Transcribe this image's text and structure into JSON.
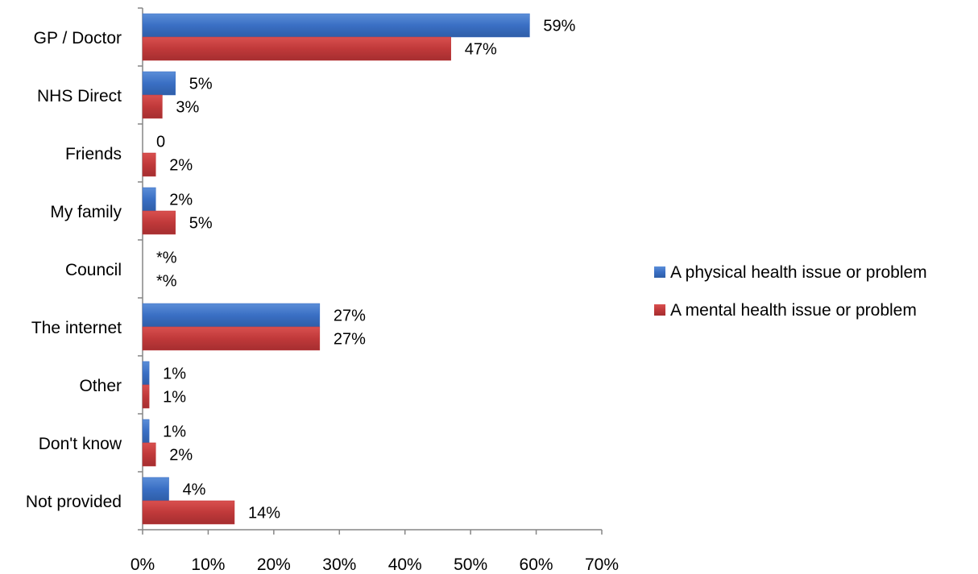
{
  "chart_data": {
    "type": "bar",
    "orientation": "horizontal",
    "title": "",
    "xlabel": "",
    "ylabel": "",
    "xlim": [
      0,
      70
    ],
    "x_ticks": [
      0,
      10,
      20,
      30,
      40,
      50,
      60,
      70
    ],
    "x_tick_labels": [
      "0%",
      "10%",
      "20%",
      "30%",
      "40%",
      "50%",
      "60%",
      "70%"
    ],
    "grid": false,
    "legend_position": "right",
    "categories": [
      "GP / Doctor",
      "NHS Direct",
      "Friends",
      "My family",
      "Council",
      "The internet",
      "Other",
      "Don't know",
      "Not provided"
    ],
    "series": [
      {
        "name": "A physical health issue or problem",
        "color": "#3a6fc4",
        "values": [
          59,
          5,
          0,
          2,
          0,
          27,
          1,
          1,
          4
        ],
        "labels": [
          "59%",
          "5%",
          "0",
          "2%",
          "*%",
          "27%",
          "1%",
          "1%",
          "4%"
        ]
      },
      {
        "name": "A mental health issue or problem",
        "color": "#c0393a",
        "values": [
          47,
          3,
          2,
          5,
          0,
          27,
          1,
          2,
          14
        ],
        "labels": [
          "47%",
          "3%",
          "2%",
          "5%",
          "*%",
          "27%",
          "1%",
          "2%",
          "14%"
        ]
      }
    ]
  }
}
